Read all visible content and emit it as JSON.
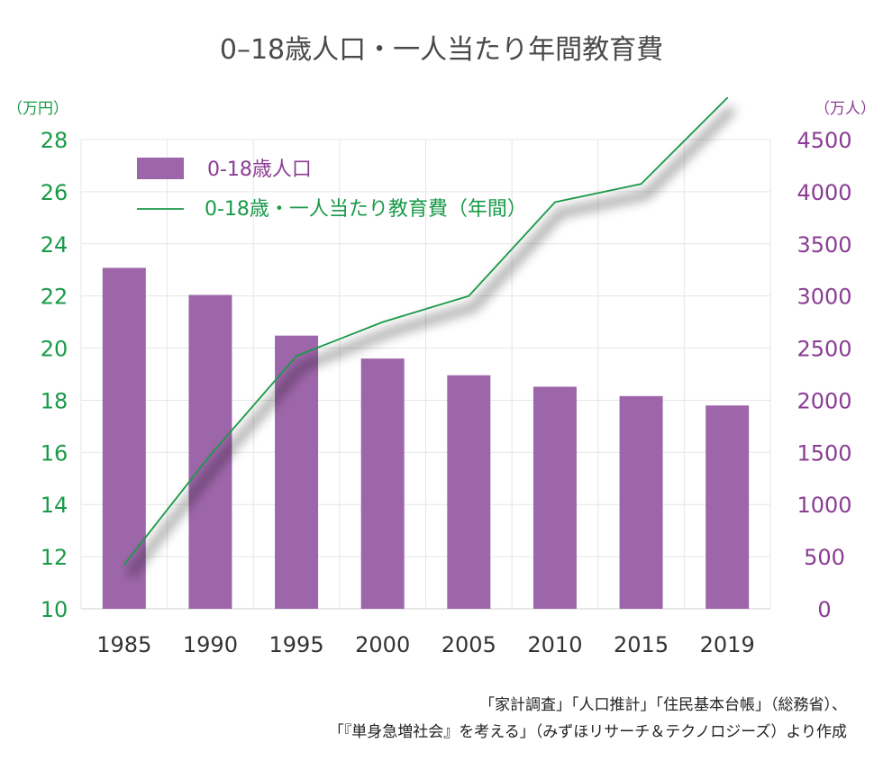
{
  "chart_data": {
    "type": "bar+line",
    "title": "0–18歳人口・一人当たり年間教育費",
    "categories": [
      "1985",
      "1990",
      "1995",
      "2000",
      "2005",
      "2010",
      "2015",
      "2019"
    ],
    "series": [
      {
        "name": "0-18歳人口",
        "type": "bar",
        "axis": "right",
        "color": "#9e66aa",
        "values": [
          3270,
          3010,
          2620,
          2400,
          2240,
          2130,
          2040,
          1950
        ]
      },
      {
        "name": "0-18歳・一人当たり教育費（年間）",
        "type": "line",
        "axis": "left",
        "color": "#1a9a48",
        "values": [
          11.7,
          15.9,
          19.7,
          21.0,
          22.0,
          25.6,
          26.3,
          29.6
        ]
      }
    ],
    "left_axis": {
      "unit": "（万円）",
      "min": 10,
      "max": 28,
      "ticks": [
        "10",
        "12",
        "14",
        "16",
        "18",
        "20",
        "22",
        "24",
        "26",
        "28"
      ]
    },
    "right_axis": {
      "unit": "（万人）",
      "min": 0,
      "max": 4500,
      "ticks": [
        "0",
        "500",
        "1000",
        "1500",
        "2000",
        "2500",
        "3000",
        "3500",
        "4000",
        "4500"
      ]
    },
    "grid": true,
    "legend_position": "top-left",
    "source_lines": [
      "「家計調査」「人口推計」「住民基本台帳」（総務省）、",
      "「『単身急増社会』を考える」（みずほリサーチ＆テクノロジーズ）より作成"
    ]
  }
}
